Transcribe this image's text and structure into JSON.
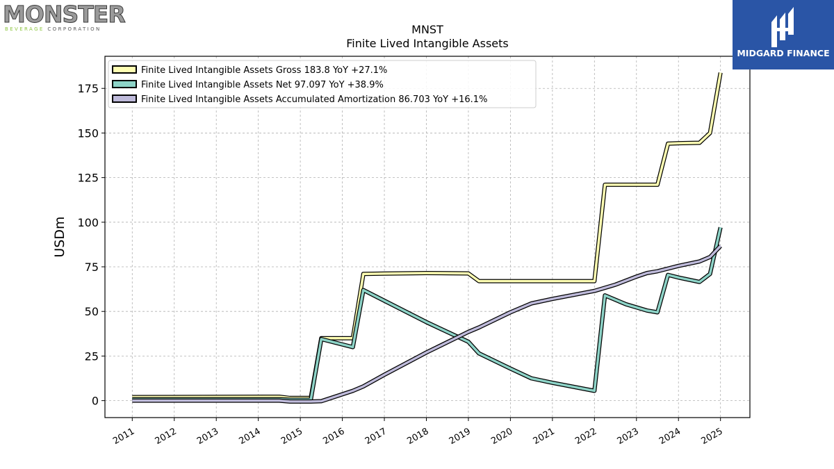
{
  "logos": {
    "left_wordmark": "MONSTER",
    "left_sub_green": "BEVERAGE",
    "left_sub_rest": "CORPORATION",
    "right_brand": "MIDGARD FINANCE"
  },
  "chart_data": {
    "type": "line",
    "title": "MNST",
    "subtitle": "Finite Lived Intangible Assets",
    "xlabel": "",
    "ylabel": "USDm",
    "xlim": [
      2010.35,
      2025.7
    ],
    "ylim": [
      -9.5,
      193
    ],
    "x_ticks": [
      2011,
      2012,
      2013,
      2014,
      2015,
      2016,
      2017,
      2018,
      2019,
      2020,
      2021,
      2022,
      2023,
      2024,
      2025
    ],
    "x_tick_labels": [
      "2011",
      "2012",
      "2013",
      "2014",
      "2015",
      "2016",
      "2017",
      "2018",
      "2019",
      "2020",
      "2021",
      "2022",
      "2023",
      "2024",
      "2025"
    ],
    "y_ticks": [
      0,
      25,
      50,
      75,
      100,
      125,
      150,
      175
    ],
    "y_tick_labels": [
      "0",
      "25",
      "50",
      "75",
      "100",
      "125",
      "150",
      "175"
    ],
    "grid": true,
    "legend_position": "top-left",
    "series": [
      {
        "name": "Finite Lived Intangible Assets Gross  183.8 YoY +27.1%",
        "color": "#ffffb3",
        "points": [
          [
            2011.0,
            2.0
          ],
          [
            2014.5,
            2.2
          ],
          [
            2014.75,
            1.5
          ],
          [
            2015.25,
            1.5
          ],
          [
            2015.5,
            35.0
          ],
          [
            2016.25,
            35.0
          ],
          [
            2016.5,
            71.0
          ],
          [
            2017.0,
            71.2
          ],
          [
            2018.0,
            71.5
          ],
          [
            2019.0,
            71.3
          ],
          [
            2019.25,
            67.0
          ],
          [
            2020.0,
            67.0
          ],
          [
            2021.0,
            67.0
          ],
          [
            2022.0,
            67.0
          ],
          [
            2022.25,
            121.0
          ],
          [
            2022.75,
            121.0
          ],
          [
            2023.5,
            121.0
          ],
          [
            2023.75,
            144.0
          ],
          [
            2024.0,
            144.3
          ],
          [
            2024.5,
            144.5
          ],
          [
            2024.75,
            150.0
          ],
          [
            2025.0,
            183.8
          ]
        ]
      },
      {
        "name": "Finite Lived Intangible Assets Net  97.097 YoY +38.9%",
        "color": "#8dd3c7",
        "points": [
          [
            2011.0,
            0.8
          ],
          [
            2014.5,
            0.8
          ],
          [
            2014.75,
            0.5
          ],
          [
            2015.25,
            0.5
          ],
          [
            2015.5,
            34.5
          ],
          [
            2016.25,
            30.0
          ],
          [
            2016.5,
            62.0
          ],
          [
            2017.0,
            56.0
          ],
          [
            2018.0,
            44.0
          ],
          [
            2019.0,
            33.0
          ],
          [
            2019.25,
            26.5
          ],
          [
            2020.0,
            18.0
          ],
          [
            2020.5,
            12.5
          ],
          [
            2021.0,
            10.0
          ],
          [
            2022.0,
            5.5
          ],
          [
            2022.25,
            59.0
          ],
          [
            2022.75,
            54.0
          ],
          [
            2023.25,
            50.5
          ],
          [
            2023.5,
            49.5
          ],
          [
            2023.75,
            70.5
          ],
          [
            2024.0,
            69.0
          ],
          [
            2024.5,
            66.5
          ],
          [
            2024.75,
            71.0
          ],
          [
            2025.0,
            97.1
          ]
        ]
      },
      {
        "name": "Finite Lived Intangible Assets Accumulated Amortization  86.703 YoY +16.1%",
        "color": "#bebada",
        "points": [
          [
            2011.0,
            0.0
          ],
          [
            2014.5,
            0.0
          ],
          [
            2014.75,
            -0.5
          ],
          [
            2015.25,
            -0.5
          ],
          [
            2015.5,
            -0.3
          ],
          [
            2016.25,
            5.5
          ],
          [
            2016.5,
            8.0
          ],
          [
            2017.0,
            14.5
          ],
          [
            2018.0,
            27.0
          ],
          [
            2019.0,
            38.5
          ],
          [
            2019.25,
            41.0
          ],
          [
            2020.0,
            49.5
          ],
          [
            2020.5,
            54.5
          ],
          [
            2021.0,
            57.0
          ],
          [
            2022.0,
            61.5
          ],
          [
            2022.5,
            65.0
          ],
          [
            2023.0,
            69.5
          ],
          [
            2023.25,
            71.5
          ],
          [
            2023.5,
            72.5
          ],
          [
            2024.0,
            75.5
          ],
          [
            2024.5,
            78.0
          ],
          [
            2024.75,
            80.5
          ],
          [
            2025.0,
            86.7
          ]
        ]
      }
    ]
  }
}
